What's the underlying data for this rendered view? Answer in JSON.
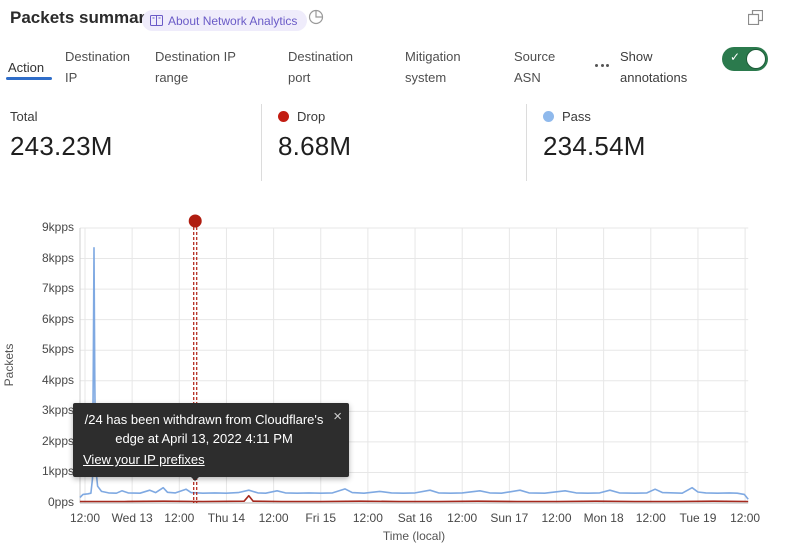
{
  "header": {
    "title": "Packets summary",
    "badge_label": "About Network Analytics",
    "accent_purple": "#6a5bc7"
  },
  "tabs": {
    "items": [
      {
        "label": "Action",
        "active": true
      },
      {
        "label": "Destination IP",
        "active": false
      },
      {
        "label": "Destination IP range",
        "active": false
      },
      {
        "label": "Destination port",
        "active": false
      },
      {
        "label": "Mitigation system",
        "active": false
      },
      {
        "label": "Source ASN",
        "active": false
      }
    ],
    "active_underline_color": "#2f6dc9",
    "annotations_toggle": {
      "label": "Show annotations",
      "enabled": true,
      "color": "#2b7a4d"
    }
  },
  "stats": {
    "items": [
      {
        "label": "Total",
        "value": "243.23M",
        "dot_color": null
      },
      {
        "label": "Drop",
        "value": "8.68M",
        "dot_color": "#c21d12"
      },
      {
        "label": "Pass",
        "value": "234.54M",
        "dot_color": "#8fb9ec"
      }
    ]
  },
  "chart_data": {
    "type": "line",
    "ylabel": "Packets",
    "xlabel": "Time (local)",
    "ylim_kpps": [
      0,
      9
    ],
    "ytick_labels": [
      "0pps",
      "1kpps",
      "2kpps",
      "3kpps",
      "4kpps",
      "5kpps",
      "6kpps",
      "7kpps",
      "8kpps",
      "9kpps"
    ],
    "xtick_labels": [
      "12:00",
      "Wed 13",
      "12:00",
      "Thu 14",
      "12:00",
      "Fri 15",
      "12:00",
      "Sat 16",
      "12:00",
      "Sun 17",
      "12:00",
      "Mon 18",
      "12:00",
      "Tue 19",
      "12:00"
    ],
    "hours_per_tick": 12,
    "grid": true,
    "series": [
      {
        "name": "pass",
        "color": "#7fa9e2",
        "points": [
          [
            -1.3,
            0.18
          ],
          [
            -0.5,
            0.28
          ],
          [
            0.8,
            0.3
          ],
          [
            1.5,
            0.32
          ],
          [
            1.9,
            0.8
          ],
          [
            2.1,
            4.5
          ],
          [
            2.3,
            8.35
          ],
          [
            2.5,
            4.0
          ],
          [
            2.7,
            1.2
          ],
          [
            3.2,
            0.55
          ],
          [
            4.2,
            0.38
          ],
          [
            6,
            0.33
          ],
          [
            8,
            0.32
          ],
          [
            9.4,
            0.4
          ],
          [
            11,
            0.33
          ],
          [
            14,
            0.32
          ],
          [
            16.5,
            0.42
          ],
          [
            18,
            0.34
          ],
          [
            19.9,
            0.5
          ],
          [
            21,
            0.35
          ],
          [
            23,
            0.33
          ],
          [
            25.7,
            0.45
          ],
          [
            27,
            0.34
          ],
          [
            30,
            0.32
          ],
          [
            33,
            0.33
          ],
          [
            36,
            0.32
          ],
          [
            39,
            0.34
          ],
          [
            41.7,
            0.42
          ],
          [
            44,
            0.33
          ],
          [
            46,
            0.32
          ],
          [
            48.9,
            0.4
          ],
          [
            51,
            0.33
          ],
          [
            54,
            0.32
          ],
          [
            57,
            0.33
          ],
          [
            60,
            0.32
          ],
          [
            63,
            0.33
          ],
          [
            66.2,
            0.46
          ],
          [
            68,
            0.34
          ],
          [
            71,
            0.32
          ],
          [
            75,
            0.38
          ],
          [
            78,
            0.33
          ],
          [
            81,
            0.32
          ],
          [
            84,
            0.33
          ],
          [
            87.8,
            0.42
          ],
          [
            90,
            0.33
          ],
          [
            93,
            0.32
          ],
          [
            96,
            0.33
          ],
          [
            100.5,
            0.4
          ],
          [
            103,
            0.33
          ],
          [
            106,
            0.32
          ],
          [
            110.7,
            0.42
          ],
          [
            113,
            0.33
          ],
          [
            117,
            0.32
          ],
          [
            122.2,
            0.4
          ],
          [
            125,
            0.33
          ],
          [
            128,
            0.32
          ],
          [
            131,
            0.33
          ],
          [
            133.6,
            0.42
          ],
          [
            136,
            0.33
          ],
          [
            140,
            0.32
          ],
          [
            143,
            0.33
          ],
          [
            145.1,
            0.45
          ],
          [
            147,
            0.34
          ],
          [
            150,
            0.33
          ],
          [
            152,
            0.32
          ],
          [
            154.5,
            0.5
          ],
          [
            156,
            0.36
          ],
          [
            158,
            0.33
          ],
          [
            161,
            0.32
          ],
          [
            164,
            0.33
          ],
          [
            166,
            0.32
          ],
          [
            167.8,
            0.28
          ],
          [
            168.8,
            0.12
          ]
        ]
      },
      {
        "name": "drop",
        "color": "#a5291e",
        "points": [
          [
            -1.3,
            0.05
          ],
          [
            10,
            0.05
          ],
          [
            20,
            0.06
          ],
          [
            30,
            0.05
          ],
          [
            40.5,
            0.06
          ],
          [
            41.7,
            0.24
          ],
          [
            42.8,
            0.06
          ],
          [
            50,
            0.05
          ],
          [
            60,
            0.05
          ],
          [
            70,
            0.06
          ],
          [
            80,
            0.05
          ],
          [
            90,
            0.05
          ],
          [
            100,
            0.06
          ],
          [
            110,
            0.05
          ],
          [
            120,
            0.05
          ],
          [
            130,
            0.06
          ],
          [
            140,
            0.05
          ],
          [
            150,
            0.05
          ],
          [
            160,
            0.06
          ],
          [
            168.8,
            0.05
          ]
        ]
      }
    ],
    "annotation": {
      "x_hours": 28.05,
      "color": "#b01d10",
      "marker": "dot-with-dashed-line"
    }
  },
  "tooltip": {
    "text": "/24 has been withdrawn from Cloudflare's edge at April 13, 2022 4:11 PM",
    "link_label": "View your IP prefixes",
    "close_label": "×"
  }
}
